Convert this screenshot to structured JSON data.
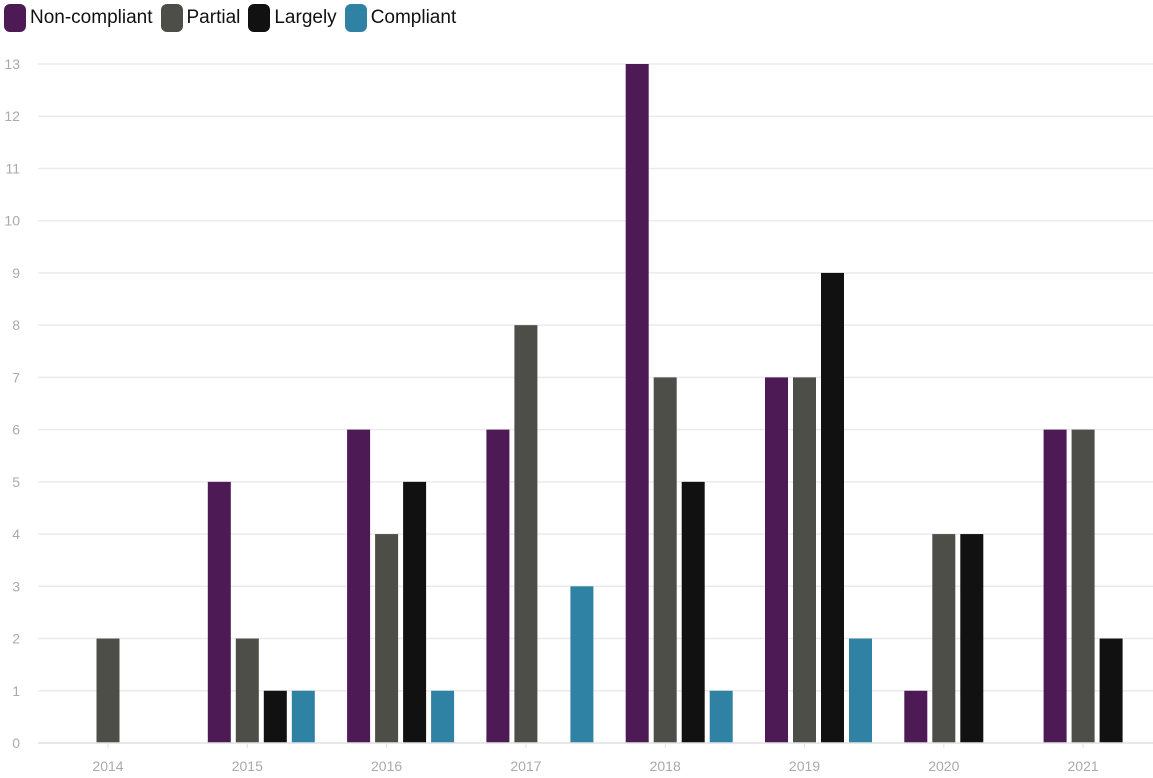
{
  "chart_data": {
    "type": "bar",
    "categories": [
      "2014",
      "2015",
      "2016",
      "2017",
      "2018",
      "2019",
      "2020",
      "2021"
    ],
    "series": [
      {
        "name": "Non-compliant",
        "color": "#4e1a55",
        "values": [
          0,
          5,
          6,
          6,
          13,
          7,
          1,
          6
        ]
      },
      {
        "name": "Partial",
        "color": "#4d4e47",
        "values": [
          2,
          2,
          4,
          8,
          7,
          7,
          4,
          6
        ]
      },
      {
        "name": "Largely",
        "color": "#111111",
        "values": [
          0,
          1,
          5,
          0,
          5,
          9,
          4,
          2
        ]
      },
      {
        "name": "Compliant",
        "color": "#2f82a3",
        "values": [
          0,
          1,
          1,
          3,
          1,
          2,
          0,
          0
        ]
      }
    ],
    "y_ticks": [
      "0",
      "1",
      "2",
      "3",
      "4",
      "5",
      "6",
      "7",
      "8",
      "9",
      "10",
      "11",
      "12",
      "13"
    ],
    "ylim": [
      0,
      13
    ],
    "grid": true,
    "legend_position": "top-left"
  }
}
